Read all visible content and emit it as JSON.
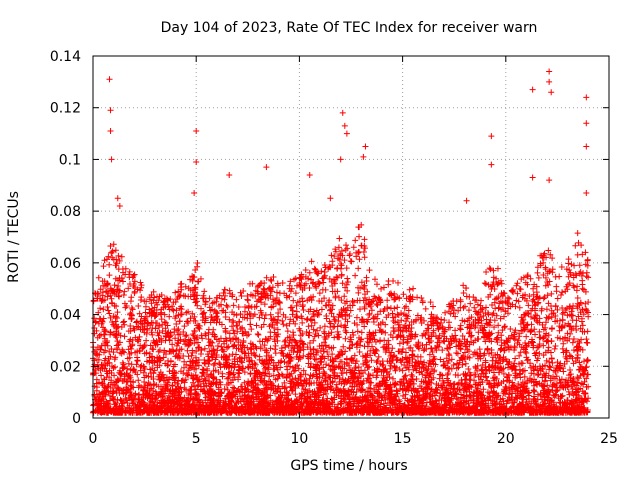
{
  "chart_data": {
    "type": "scatter",
    "title": "Day 104 of 2023, Rate Of TEC Index for receiver warn",
    "xlabel": "GPS time / hours",
    "ylabel": "ROTI / TECUs",
    "xlim": [
      0,
      25
    ],
    "ylim": [
      0,
      0.14
    ],
    "grid": true,
    "marker": "plus",
    "color": "#ff0000",
    "xticks": [
      0,
      5,
      10,
      15,
      20,
      25
    ],
    "xtick_labels": [
      "0",
      "5",
      "10",
      "15",
      "20",
      "25"
    ],
    "yticks": [
      0,
      0.02,
      0.04,
      0.06,
      0.08,
      0.1,
      0.12,
      0.14
    ],
    "ytick_labels": [
      "0",
      "0.02",
      "0.04",
      "0.06",
      "0.08",
      "0.1",
      "0.12",
      "0.14"
    ],
    "series": [
      {
        "name": "ROTI",
        "x_range": [
          0,
          24
        ],
        "description_points": [
          [
            0.8,
            0.131
          ],
          [
            0.85,
            0.119
          ],
          [
            0.85,
            0.111
          ],
          [
            0.9,
            0.1
          ],
          [
            1.2,
            0.085
          ],
          [
            1.3,
            0.082
          ],
          [
            5.0,
            0.111
          ],
          [
            5.0,
            0.099
          ],
          [
            4.9,
            0.087
          ],
          [
            6.6,
            0.094
          ],
          [
            8.4,
            0.097
          ],
          [
            12.1,
            0.118
          ],
          [
            12.2,
            0.113
          ],
          [
            12.3,
            0.11
          ],
          [
            12.0,
            0.1
          ],
          [
            13.2,
            0.105
          ],
          [
            13.1,
            0.101
          ],
          [
            19.3,
            0.109
          ],
          [
            19.3,
            0.098
          ],
          [
            18.1,
            0.084
          ],
          [
            21.3,
            0.127
          ],
          [
            22.1,
            0.134
          ],
          [
            22.1,
            0.13
          ],
          [
            22.2,
            0.126
          ],
          [
            21.3,
            0.093
          ],
          [
            22.1,
            0.092
          ],
          [
            23.9,
            0.124
          ],
          [
            23.9,
            0.114
          ],
          [
            23.9,
            0.105
          ],
          [
            23.9,
            0.087
          ],
          [
            10.5,
            0.094
          ],
          [
            11.5,
            0.085
          ]
        ],
        "envelope": [
          [
            0,
            0.045
          ],
          [
            0.5,
            0.06
          ],
          [
            1,
            0.07
          ],
          [
            1.5,
            0.06
          ],
          [
            2,
            0.055
          ],
          [
            2.5,
            0.05
          ],
          [
            3,
            0.047
          ],
          [
            3.5,
            0.045
          ],
          [
            4,
            0.05
          ],
          [
            4.5,
            0.05
          ],
          [
            5,
            0.06
          ],
          [
            5.5,
            0.045
          ],
          [
            6,
            0.045
          ],
          [
            6.5,
            0.05
          ],
          [
            7,
            0.045
          ],
          [
            7.5,
            0.05
          ],
          [
            8,
            0.05
          ],
          [
            8.5,
            0.055
          ],
          [
            9,
            0.05
          ],
          [
            9.5,
            0.052
          ],
          [
            10,
            0.055
          ],
          [
            10.5,
            0.06
          ],
          [
            11,
            0.055
          ],
          [
            11.5,
            0.06
          ],
          [
            12,
            0.07
          ],
          [
            12.5,
            0.065
          ],
          [
            13,
            0.075
          ],
          [
            13.5,
            0.055
          ],
          [
            14,
            0.05
          ],
          [
            14.5,
            0.052
          ],
          [
            15,
            0.05
          ],
          [
            15.5,
            0.05
          ],
          [
            16,
            0.045
          ],
          [
            16.5,
            0.042
          ],
          [
            17,
            0.04
          ],
          [
            17.5,
            0.045
          ],
          [
            18,
            0.05
          ],
          [
            18.5,
            0.045
          ],
          [
            19,
            0.055
          ],
          [
            19.5,
            0.06
          ],
          [
            20,
            0.045
          ],
          [
            20.5,
            0.05
          ],
          [
            21,
            0.055
          ],
          [
            21.5,
            0.06
          ],
          [
            22,
            0.065
          ],
          [
            22.5,
            0.055
          ],
          [
            23,
            0.06
          ],
          [
            23.5,
            0.07
          ],
          [
            24,
            0.06
          ]
        ]
      }
    ]
  }
}
